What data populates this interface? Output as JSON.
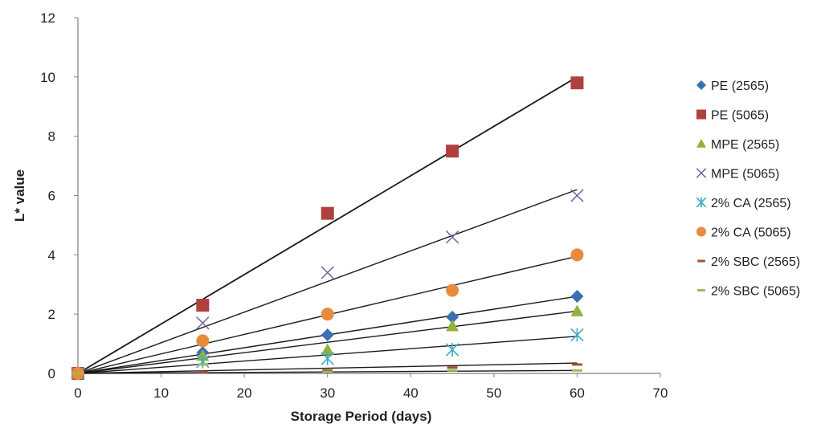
{
  "chart_data": {
    "type": "scatter",
    "title": "",
    "xlabel": "Storage Period (days)",
    "ylabel": "L* value",
    "xlim": [
      0,
      70
    ],
    "ylim": [
      0,
      12
    ],
    "xticks": [
      0,
      10,
      20,
      30,
      40,
      50,
      60,
      70
    ],
    "yticks": [
      0,
      2,
      4,
      6,
      8,
      10,
      12
    ],
    "grid": false,
    "legend_position": "right",
    "x": [
      0,
      15,
      30,
      45,
      60
    ],
    "series": [
      {
        "name": "PE (2565)",
        "marker": "diamond",
        "color": "#3a6fb0",
        "values": [
          0,
          0.7,
          1.3,
          1.9,
          2.6
        ],
        "trend": [
          0,
          2.6
        ]
      },
      {
        "name": "PE (5065)",
        "marker": "square",
        "color": "#b0413e",
        "values": [
          0,
          2.3,
          5.4,
          7.5,
          9.8
        ],
        "trend": [
          0,
          10.0
        ]
      },
      {
        "name": "MPE (2565)",
        "marker": "triangle",
        "color": "#8fb33b",
        "values": [
          0,
          0.6,
          0.8,
          1.6,
          2.1
        ],
        "trend": [
          0,
          2.1
        ]
      },
      {
        "name": "MPE (5065)",
        "marker": "x",
        "color": "#7b68a8",
        "values": [
          0,
          1.7,
          3.4,
          4.6,
          6.0
        ],
        "trend": [
          0,
          6.2
        ]
      },
      {
        "name": "2% CA (2565)",
        "marker": "asterisk",
        "color": "#3fa8c6",
        "values": [
          0,
          0.4,
          0.5,
          0.8,
          1.3
        ],
        "trend": [
          0,
          1.25
        ]
      },
      {
        "name": "2% CA (5065)",
        "marker": "circle",
        "color": "#e88b3c",
        "values": [
          0,
          1.1,
          2.0,
          2.8,
          4.0
        ],
        "trend": [
          0,
          3.95
        ]
      },
      {
        "name": "2% SBC (2565)",
        "marker": "dash",
        "color": "#a0522d",
        "values": [
          0,
          0.05,
          0.1,
          0.2,
          0.3
        ],
        "trend": [
          0,
          0.35
        ]
      },
      {
        "name": "2% SBC (5065)",
        "marker": "dash",
        "color": "#9bbb59",
        "values": [
          0,
          0.3,
          0.05,
          0.1,
          0.1
        ],
        "trend": [
          0,
          0.1
        ]
      }
    ]
  }
}
